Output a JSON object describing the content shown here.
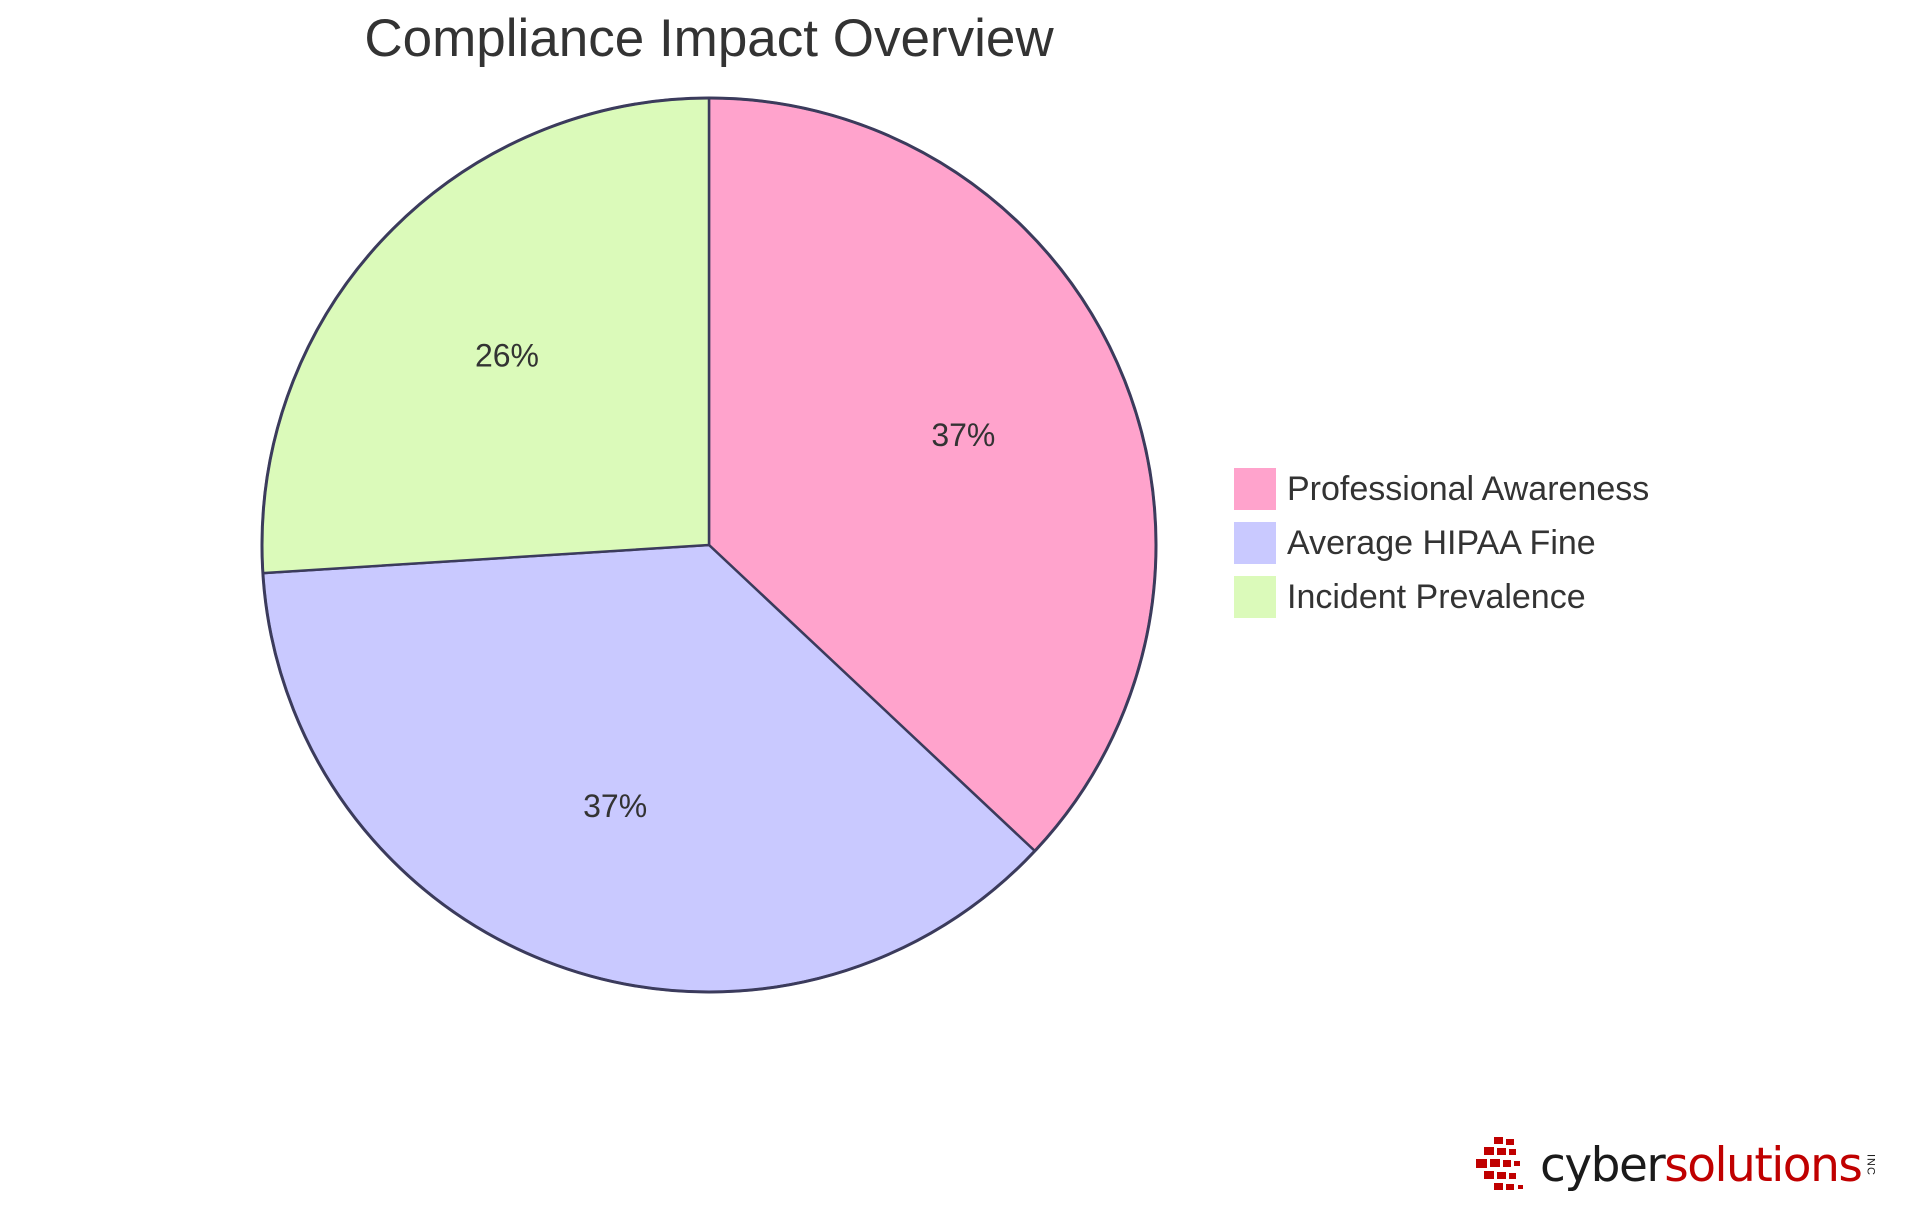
{
  "chart_data": {
    "type": "pie",
    "title": "Compliance Impact Overview",
    "slices": [
      {
        "label": "Professional Awareness",
        "value": 37,
        "display": "37%",
        "color": "#FFA3CC"
      },
      {
        "label": "Average HIPAA Fine",
        "value": 37,
        "display": "37%",
        "color": "#C9C9FF"
      },
      {
        "label": "Incident Prevalence",
        "value": 26,
        "display": "26%",
        "color": "#DBFABA"
      }
    ],
    "legend_position": "right",
    "stroke_color": "#3B3B5C"
  },
  "logo": {
    "word_dark": "cyber",
    "word_red": "solutions",
    "suffix": "INC",
    "accent_color": "#C00000"
  }
}
